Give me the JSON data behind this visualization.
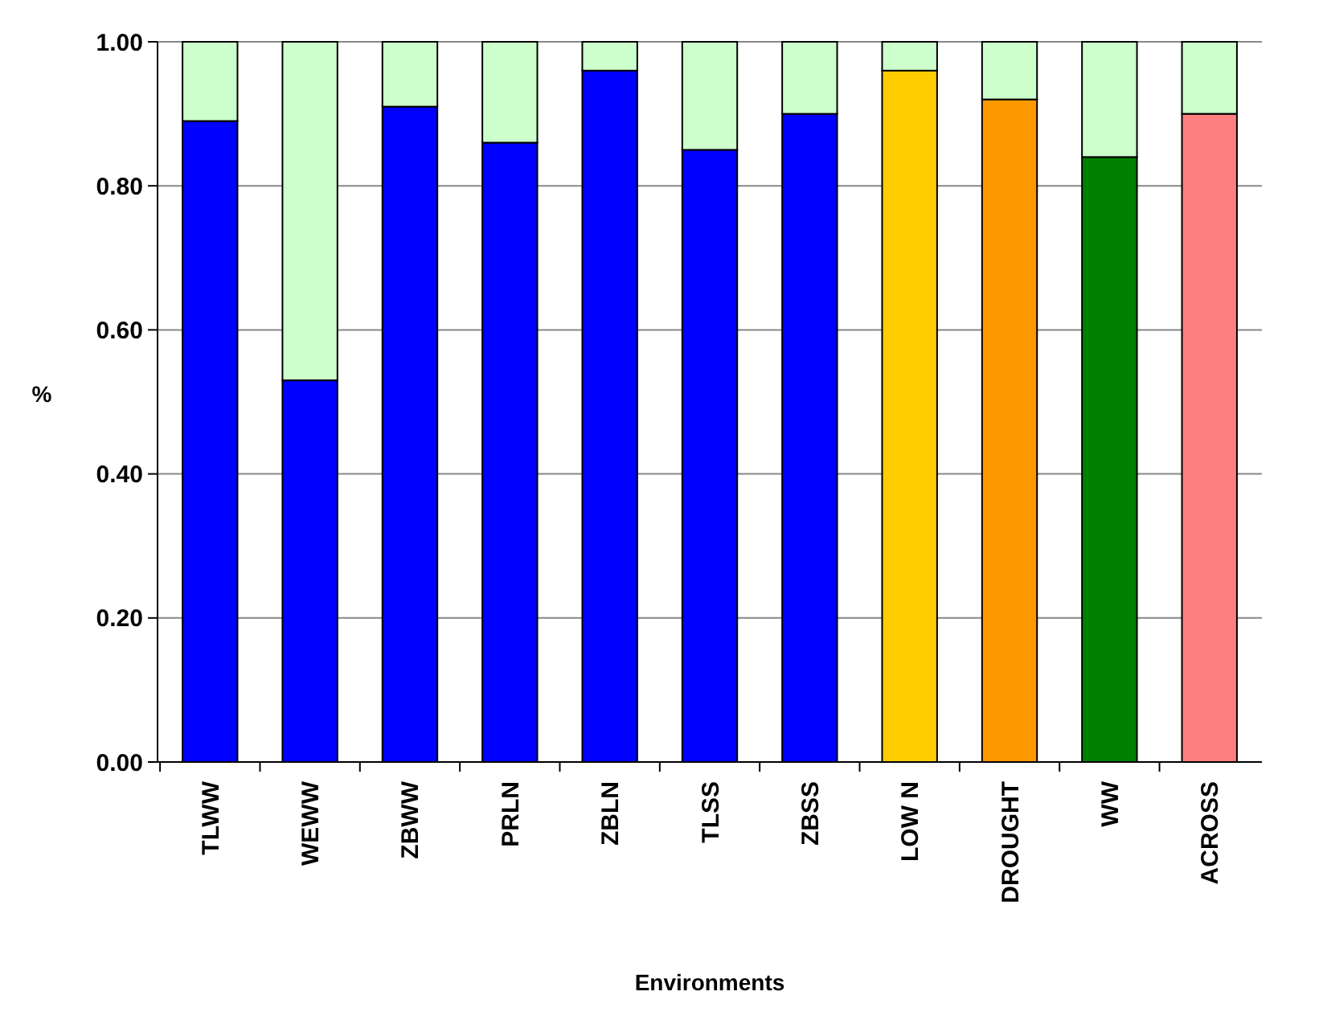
{
  "chart_data": {
    "type": "bar",
    "stacked": true,
    "xlabel": "Environments",
    "ylabel": "%",
    "categories": [
      "TLWW",
      "WEWW",
      "ZBWW",
      "PRLN",
      "ZBLN",
      "TLSS",
      "ZBSS",
      "LOW N",
      "DROUGHT",
      "WW",
      "ACROSS"
    ],
    "series": [
      {
        "colors": [
          "#0000ff",
          "#0000ff",
          "#0000ff",
          "#0000ff",
          "#0000ff",
          "#0000ff",
          "#0000ff",
          "#ffcc00",
          "#ff9900",
          "#008000",
          "#ff8080"
        ],
        "values": [
          0.89,
          0.53,
          0.91,
          0.86,
          0.96,
          0.85,
          0.9,
          0.96,
          0.92,
          0.84,
          0.9
        ]
      },
      {
        "color": "#ccffcc",
        "values": [
          0.11,
          0.47,
          0.09,
          0.14,
          0.04,
          0.15,
          0.1,
          0.04,
          0.08,
          0.16,
          0.1
        ]
      }
    ],
    "ylim": [
      0,
      1
    ],
    "yticks": [
      {
        "value": 0,
        "label": "0.00"
      },
      {
        "value": 0.2,
        "label": "0.20"
      },
      {
        "value": 0.4,
        "label": "0.40"
      },
      {
        "value": 0.6,
        "label": "0.60"
      },
      {
        "value": 0.8,
        "label": "0.80"
      },
      {
        "value": 1,
        "label": "1.00"
      }
    ],
    "grid": "y"
  }
}
